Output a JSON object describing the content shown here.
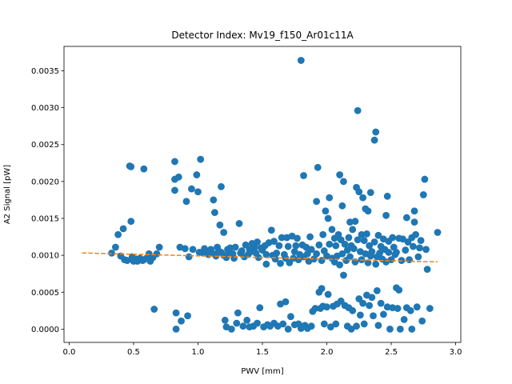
{
  "chart_data": {
    "type": "scatter",
    "title": "Detector Index: Mv19_f150_Ar01c11A",
    "xlabel": "PWV [mm]",
    "ylabel": "A2 Signal [pW]",
    "xlim": [
      -0.04,
      3.04
    ],
    "ylim": [
      -0.00018,
      0.00383
    ],
    "x_ticks": [
      0.0,
      0.5,
      1.0,
      1.5,
      2.0,
      2.5,
      3.0
    ],
    "x_tick_labels": [
      "0.0",
      "0.5",
      "1.0",
      "1.5",
      "2.0",
      "2.5",
      "3.0"
    ],
    "y_ticks": [
      0.0,
      0.0005,
      0.001,
      0.0015,
      0.002,
      0.0025,
      0.003,
      0.0035
    ],
    "y_tick_labels": [
      "0.0000",
      "0.0005",
      "0.0010",
      "0.0015",
      "0.0020",
      "0.0025",
      "0.0030",
      "0.0035"
    ],
    "series": [
      {
        "name": "A2 signal",
        "kind": "scatter",
        "color": "#1f77b4",
        "points": [
          [
            0.33,
            0.00103
          ],
          [
            0.36,
            0.00111
          ],
          [
            0.38,
            0.00128
          ],
          [
            0.4,
            0.00099
          ],
          [
            0.42,
            0.00136
          ],
          [
            0.43,
            0.00094
          ],
          [
            0.45,
            0.00093
          ],
          [
            0.47,
            0.00221
          ],
          [
            0.48,
            0.0022
          ],
          [
            0.48,
            0.00146
          ],
          [
            0.49,
            0.00098
          ],
          [
            0.5,
            0.00092
          ],
          [
            0.52,
            0.00095
          ],
          [
            0.53,
            0.00092
          ],
          [
            0.55,
            0.00096
          ],
          [
            0.57,
            0.00093
          ],
          [
            0.58,
            0.00217
          ],
          [
            0.58,
            0.00094
          ],
          [
            0.6,
            0.00096
          ],
          [
            0.62,
            0.00102
          ],
          [
            0.63,
            0.00092
          ],
          [
            0.65,
            0.00097
          ],
          [
            0.66,
            0.00027
          ],
          [
            0.68,
            0.00102
          ],
          [
            0.7,
            0.00111
          ],
          [
            0.82,
            0.00227
          ],
          [
            0.82,
            0.00203
          ],
          [
            0.82,
            0.00188
          ],
          [
            0.83,
            0.00022
          ],
          [
            0.83,
            0.0
          ],
          [
            0.85,
            0.00206
          ],
          [
            0.86,
            0.00111
          ],
          [
            0.87,
            0.00011
          ],
          [
            0.9,
            0.00109
          ],
          [
            0.91,
            0.00173
          ],
          [
            0.92,
            0.00018
          ],
          [
            0.93,
            0.00098
          ],
          [
            0.95,
            0.0019
          ],
          [
            0.96,
            0.00108
          ],
          [
            0.99,
            0.00209
          ],
          [
            1.0,
            0.00186
          ],
          [
            1.01,
            0.00104
          ],
          [
            1.02,
            0.0023
          ],
          [
            1.04,
            0.00103
          ],
          [
            1.05,
            0.00109
          ],
          [
            1.07,
            0.00105
          ],
          [
            1.08,
            0.00101
          ],
          [
            1.1,
            0.00108
          ],
          [
            1.11,
            0.00103
          ],
          [
            1.12,
            0.00175
          ],
          [
            1.13,
            0.00158
          ],
          [
            1.14,
            0.00099
          ],
          [
            1.15,
            0.00111
          ],
          [
            1.16,
            0.00106
          ],
          [
            1.17,
            0.00141
          ],
          [
            1.18,
            0.00193
          ],
          [
            1.18,
            0.00104
          ],
          [
            1.2,
            0.00131
          ],
          [
            1.2,
            0.001
          ],
          [
            1.21,
            0.00012
          ],
          [
            1.22,
            3e-05
          ],
          [
            1.22,
            0.00097
          ],
          [
            1.23,
            0.00108
          ],
          [
            1.24,
            0.00104
          ],
          [
            1.25,
            0.0011
          ],
          [
            1.26,
            0.0
          ],
          [
            1.27,
            0.00102
          ],
          [
            1.28,
            0.00096
          ],
          [
            1.29,
            0.00111
          ],
          [
            1.3,
            8e-05
          ],
          [
            1.31,
            0.00022
          ],
          [
            1.32,
            0.00143
          ],
          [
            1.33,
            0.00103
          ],
          [
            1.34,
            0.00106
          ],
          [
            1.35,
            4e-05
          ],
          [
            1.36,
            0.00098
          ],
          [
            1.37,
            0.00114
          ],
          [
            1.38,
            0.00012
          ],
          [
            1.39,
            0.00101
          ],
          [
            1.4,
            3e-05
          ],
          [
            1.4,
            0.00108
          ],
          [
            1.41,
            0.00105
          ],
          [
            1.42,
            0.00116
          ],
          [
            1.43,
            4e-05
          ],
          [
            1.44,
            0.00111
          ],
          [
            1.45,
            0.00103
          ],
          [
            1.46,
            8e-05
          ],
          [
            1.46,
            0.00118
          ],
          [
            1.47,
            0.00097
          ],
          [
            1.48,
            0.00029
          ],
          [
            1.49,
            0.0011
          ],
          [
            1.5,
            0.00107
          ],
          [
            1.51,
            3e-05
          ],
          [
            1.52,
            0.00113
          ],
          [
            1.53,
            0.00088
          ],
          [
            1.53,
            0.00101
          ],
          [
            1.54,
            6e-05
          ],
          [
            1.55,
            0.00117
          ],
          [
            1.56,
            4e-05
          ],
          [
            1.57,
            0.00134
          ],
          [
            1.58,
            0.001
          ],
          [
            1.59,
            0.00119
          ],
          [
            1.59,
            8e-05
          ],
          [
            1.6,
            0.00095
          ],
          [
            1.61,
            0.00103
          ],
          [
            1.62,
            4e-05
          ],
          [
            1.63,
            0.00113
          ],
          [
            1.64,
            0.00034
          ],
          [
            1.64,
            0.00089
          ],
          [
            1.65,
            0.00124
          ],
          [
            1.66,
            7e-05
          ],
          [
            1.67,
            0.00101
          ],
          [
            1.68,
            0.00037
          ],
          [
            1.68,
            0.00096
          ],
          [
            1.69,
            0.00124
          ],
          [
            1.7,
            0.0
          ],
          [
            1.7,
            0.00112
          ],
          [
            1.71,
            0.0009
          ],
          [
            1.72,
            0.00017
          ],
          [
            1.73,
            0.00126
          ],
          [
            1.74,
            0.00096
          ],
          [
            1.75,
            0.00105
          ],
          [
            1.75,
            6e-05
          ],
          [
            1.76,
            0.00113
          ],
          [
            1.77,
            0.00123
          ],
          [
            1.78,
            7e-05
          ],
          [
            1.78,
            0.00094
          ],
          [
            1.79,
            0.00101
          ],
          [
            1.8,
            0.00364
          ],
          [
            1.8,
            1e-05
          ],
          [
            1.81,
            0.00114
          ],
          [
            1.82,
            0.00208
          ],
          [
            1.82,
            0.00098
          ],
          [
            1.83,
            5e-05
          ],
          [
            1.84,
            0.00111
          ],
          [
            1.85,
            0.00102
          ],
          [
            1.85,
            1e-05
          ],
          [
            1.86,
            0.00092
          ],
          [
            1.87,
            0.00125
          ],
          [
            1.88,
            0.00108
          ],
          [
            1.88,
            4e-05
          ],
          [
            1.89,
            0.00024
          ],
          [
            1.9,
            0.00095
          ],
          [
            1.91,
            0.00028
          ],
          [
            1.92,
            0.00173
          ],
          [
            1.92,
            0.00102
          ],
          [
            1.93,
            0.00219
          ],
          [
            1.94,
            0.00114
          ],
          [
            1.94,
            0.0005
          ],
          [
            1.95,
            0.00028
          ],
          [
            1.96,
            0.00093
          ],
          [
            1.96,
            0.00055
          ],
          [
            1.97,
            0.00128
          ],
          [
            1.97,
            0.00031
          ],
          [
            1.98,
            0.00106
          ],
          [
            1.98,
            7e-05
          ],
          [
            1.99,
            0.0016
          ],
          [
            2.0,
            0.00099
          ],
          [
            2.0,
            0.0003
          ],
          [
            2.01,
            0.0015
          ],
          [
            2.01,
            0.00047
          ],
          [
            2.02,
            0.00178
          ],
          [
            2.02,
            0.00115
          ],
          [
            2.03,
            3e-05
          ],
          [
            2.04,
            0.00096
          ],
          [
            2.04,
            0.00135
          ],
          [
            2.05,
            0.00031
          ],
          [
            2.06,
            0.00091
          ],
          [
            2.06,
            0.00123
          ],
          [
            2.07,
            0.00113
          ],
          [
            2.07,
            7e-05
          ],
          [
            2.08,
            0.00034
          ],
          [
            2.08,
            0.00099
          ],
          [
            2.09,
            0.00128
          ],
          [
            2.1,
            0.00209
          ],
          [
            2.1,
            0.00087
          ],
          [
            2.11,
            0.00121
          ],
          [
            2.11,
            0.00038
          ],
          [
            2.12,
            0.00167
          ],
          [
            2.12,
            0.00102
          ],
          [
            2.13,
            0.00073
          ],
          [
            2.13,
            0.002
          ],
          [
            2.14,
            0.00115
          ],
          [
            2.14,
            0.00032
          ],
          [
            2.15,
            0.00093
          ],
          [
            2.16,
            0.00107
          ],
          [
            2.16,
            4e-05
          ],
          [
            2.17,
            0.00124
          ],
          [
            2.17,
            0.00029
          ],
          [
            2.18,
            0.00145
          ],
          [
            2.18,
            0.00098
          ],
          [
            2.19,
            0.00113
          ],
          [
            2.19,
            0.0
          ],
          [
            2.2,
            0.00135
          ],
          [
            2.2,
            0.00025
          ],
          [
            2.21,
            0.00109
          ],
          [
            2.22,
            0.00146
          ],
          [
            2.22,
            0.00091
          ],
          [
            2.23,
            0.00192
          ],
          [
            2.23,
            4e-05
          ],
          [
            2.24,
            0.00296
          ],
          [
            2.24,
            0.00121
          ],
          [
            2.25,
            0.00186
          ],
          [
            2.25,
            0.00041
          ],
          [
            2.26,
            0.00105
          ],
          [
            2.26,
            0.00019
          ],
          [
            2.27,
            0.00128
          ],
          [
            2.27,
            0.00094
          ],
          [
            2.28,
            0.00178
          ],
          [
            2.28,
            0.00035
          ],
          [
            2.29,
            0.0012
          ],
          [
            2.29,
            7e-05
          ],
          [
            2.3,
            0.00163
          ],
          [
            2.3,
            0.00102
          ],
          [
            2.31,
            0.00046
          ],
          [
            2.31,
            0.00129
          ],
          [
            2.32,
            0.0016
          ],
          [
            2.32,
            0.0009
          ],
          [
            2.33,
            0.00113
          ],
          [
            2.33,
            0.00032
          ],
          [
            2.34,
            0.00185
          ],
          [
            2.34,
            0.00099
          ],
          [
            2.35,
            0.00043
          ],
          [
            2.35,
            0.00105
          ],
          [
            2.36,
            0.00018
          ],
          [
            2.37,
            0.00256
          ],
          [
            2.37,
            0.00118
          ],
          [
            2.38,
            0.00267
          ],
          [
            2.38,
            0.00088
          ],
          [
            2.39,
            0.00098
          ],
          [
            2.39,
            0.00052
          ],
          [
            2.4,
            0.00127
          ],
          [
            2.4,
            5e-05
          ],
          [
            2.41,
            0.00103
          ],
          [
            2.42,
            0.00112
          ],
          [
            2.42,
            0.00035
          ],
          [
            2.43,
            0.00095
          ],
          [
            2.44,
            0.00122
          ],
          [
            2.44,
            0.0002
          ],
          [
            2.45,
            0.00108
          ],
          [
            2.46,
            0.00091
          ],
          [
            2.46,
            0.00154
          ],
          [
            2.47,
            0.0018
          ],
          [
            2.47,
            0.0003
          ],
          [
            2.48,
            0.00119
          ],
          [
            2.48,
            0.00104
          ],
          [
            2.49,
            0.0
          ],
          [
            2.5,
            0.00094
          ],
          [
            2.51,
            0.00124
          ],
          [
            2.51,
            0.00029
          ],
          [
            2.52,
            0.00111
          ],
          [
            2.53,
            0.00101
          ],
          [
            2.54,
            0.00056
          ],
          [
            2.54,
            0.00104
          ],
          [
            2.55,
            0.00028
          ],
          [
            2.56,
            0.00053
          ],
          [
            2.56,
            0.00123
          ],
          [
            2.57,
            0.0
          ],
          [
            2.58,
            0.00093
          ],
          [
            2.59,
            0.00122
          ],
          [
            2.6,
            0.00013
          ],
          [
            2.61,
            0.00107
          ],
          [
            2.62,
            0.00151
          ],
          [
            2.62,
            0.00029
          ],
          [
            2.63,
            0.00118
          ],
          [
            2.64,
            0.00094
          ],
          [
            2.65,
            0.00025
          ],
          [
            2.66,
            0.0
          ],
          [
            2.66,
            0.00124
          ],
          [
            2.67,
            0.00112
          ],
          [
            2.68,
            0.0016
          ],
          [
            2.68,
            0.00145
          ],
          [
            2.69,
            0.00128
          ],
          [
            2.7,
            0.0003
          ],
          [
            2.71,
            0.00098
          ],
          [
            2.72,
            0.0011
          ],
          [
            2.73,
            0.0012
          ],
          [
            2.74,
            0.00011
          ],
          [
            2.75,
            0.00182
          ],
          [
            2.76,
            0.00203
          ],
          [
            2.77,
            0.00108
          ],
          [
            2.78,
            0.00081
          ],
          [
            2.8,
            0.00028
          ],
          [
            2.86,
            0.00131
          ]
        ]
      },
      {
        "name": "linear fit",
        "kind": "line",
        "style": "dashed",
        "color": "#ff7f0e",
        "x": [
          0.1,
          2.86
        ],
        "y": [
          0.001032,
          0.00091
        ]
      }
    ]
  }
}
